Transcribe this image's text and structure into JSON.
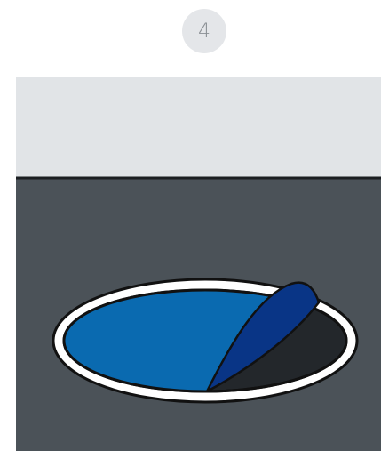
{
  "step": {
    "number": "4"
  }
}
